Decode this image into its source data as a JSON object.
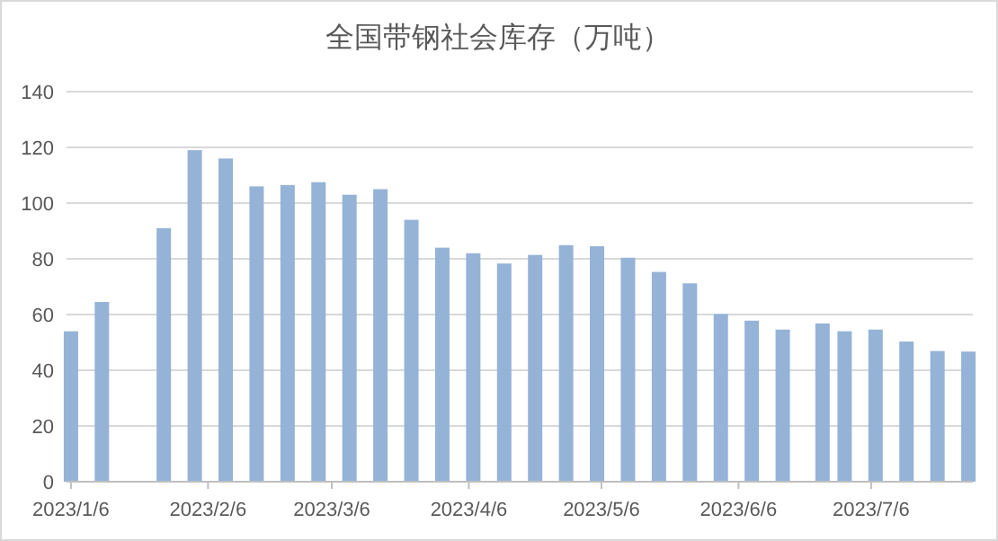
{
  "chart_data": {
    "type": "bar",
    "title": "全国带钢社会库存（万吨）",
    "x": [
      "2023-01-06",
      "2023-01-13",
      "2023-01-27",
      "2023-02-03",
      "2023-02-10",
      "2023-02-17",
      "2023-02-24",
      "2023-03-03",
      "2023-03-10",
      "2023-03-17",
      "2023-03-24",
      "2023-03-31",
      "2023-04-07",
      "2023-04-14",
      "2023-04-21",
      "2023-04-28",
      "2023-05-05",
      "2023-05-12",
      "2023-05-19",
      "2023-05-26",
      "2023-06-02",
      "2023-06-09",
      "2023-06-16",
      "2023-06-25",
      "2023-06-30",
      "2023-07-07",
      "2023-07-14",
      "2023-07-21",
      "2023-07-28"
    ],
    "series": [
      {
        "color": "#95b3d7",
        "values": [
          54,
          64.5,
          91,
          119,
          116,
          106,
          106.5,
          107.5,
          103,
          105,
          94,
          84,
          82,
          78.3,
          81.4,
          84.9,
          84.5,
          80.4,
          75.3,
          71.2,
          60.2,
          57.8,
          54.6,
          56.8,
          54,
          54.6,
          50.3,
          46.9,
          46.7
        ]
      }
    ],
    "xlim": [
      "2023-01-05",
      "2023-07-29"
    ],
    "xticks": [
      {
        "value": "2023-01-06",
        "label": "2023/1/6"
      },
      {
        "value": "2023-02-06",
        "label": "2023/2/6"
      },
      {
        "value": "2023-03-06",
        "label": "2023/3/6"
      },
      {
        "value": "2023-04-06",
        "label": "2023/4/6"
      },
      {
        "value": "2023-05-06",
        "label": "2023/5/6"
      },
      {
        "value": "2023-06-06",
        "label": "2023/6/6"
      },
      {
        "value": "2023-07-06",
        "label": "2023/7/6"
      }
    ],
    "ylim": [
      0,
      140
    ],
    "yticks": [
      0,
      20,
      40,
      60,
      80,
      100,
      120,
      140
    ],
    "grid": "y"
  }
}
